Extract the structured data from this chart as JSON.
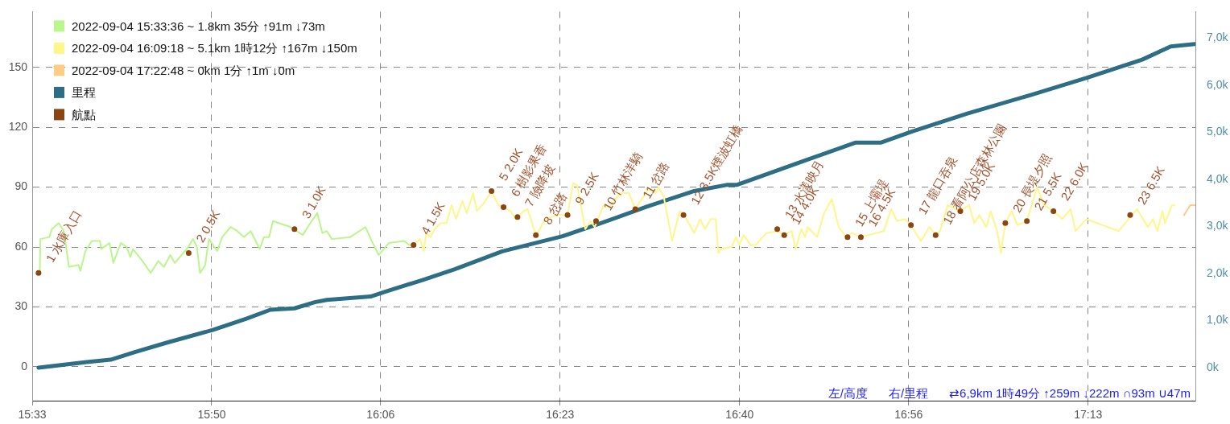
{
  "chart_data": {
    "type": "line",
    "xlim": [
      15.55,
      17.386
    ],
    "xticks": [
      {
        "value": 15.55,
        "label": "15:33"
      },
      {
        "value": 15.8333,
        "label": "15:50"
      },
      {
        "value": 16.1,
        "label": "16:06"
      },
      {
        "value": 16.3833,
        "label": "16:23"
      },
      {
        "value": 16.6667,
        "label": "16:40"
      },
      {
        "value": 16.9333,
        "label": "16:56"
      },
      {
        "value": 17.2167,
        "label": "17:13"
      }
    ],
    "ylim": [
      -17,
      178
    ],
    "yticks": [
      0,
      30,
      60,
      90,
      120,
      150
    ],
    "y2lim": [
      -0.7,
      7.56
    ],
    "y2ticks": [
      {
        "value": 0,
        "label": "0k"
      },
      {
        "value": 1,
        "label": "1,0k"
      },
      {
        "value": 2,
        "label": "2,0k"
      },
      {
        "value": 3,
        "label": "3,0k"
      },
      {
        "value": 4,
        "label": "4,0k"
      },
      {
        "value": 5,
        "label": "5,0k"
      },
      {
        "value": 6,
        "label": "6,0k"
      },
      {
        "value": 7,
        "label": "7,0k"
      }
    ],
    "grid": true,
    "legend": "top left",
    "series": [
      {
        "name": "2022-09-04 15:33:36 ~ 1.8km 35分 ↑91m ↓73m",
        "color": "#b9f68b",
        "x": [
          15.562,
          15.563,
          15.577,
          15.581,
          15.592,
          15.6,
          15.608,
          15.623,
          15.626,
          15.634,
          15.644,
          15.657,
          15.659,
          15.672,
          15.678,
          15.69,
          15.699,
          15.705,
          15.709,
          15.724,
          15.737,
          15.749,
          15.758,
          15.768,
          15.775,
          15.794,
          15.804,
          15.81,
          15.815,
          15.823,
          15.829,
          15.842,
          15.85,
          15.863,
          15.874,
          15.884,
          15.895,
          15.909,
          15.916,
          15.924,
          15.93,
          15.958,
          15.977,
          15.989,
          16.0,
          16.008,
          16.015,
          16.023,
          16.052,
          16.076,
          16.086,
          16.097,
          16.113,
          16.137,
          16.145,
          16.151
        ],
        "values": [
          47,
          64,
          65,
          69,
          72,
          68,
          50,
          51,
          48,
          58,
          63,
          63,
          59,
          62,
          52,
          62,
          60,
          55,
          59,
          53,
          47,
          53,
          50,
          56,
          52,
          59,
          64,
          60,
          47,
          51,
          64,
          58,
          65,
          70,
          68,
          65,
          68,
          59,
          65,
          65,
          73,
          70,
          66,
          72,
          77,
          67,
          68,
          64,
          65,
          70,
          63,
          56,
          62,
          63,
          61,
          61
        ]
      },
      {
        "name": "2022-09-04 16:09:18 ~ 5.1km 1時12分 ↑167m ↓150m",
        "color": "#fff68a",
        "x": [
          16.151,
          16.162,
          16.168,
          16.172,
          16.179,
          16.185,
          16.195,
          16.204,
          16.212,
          16.219,
          16.229,
          16.236,
          16.246,
          16.252,
          16.263,
          16.275,
          16.286,
          16.294,
          16.305,
          16.313,
          16.326,
          16.332,
          16.343,
          16.346,
          16.351,
          16.36,
          16.377,
          16.395,
          16.404,
          16.41,
          16.423,
          16.431,
          16.438,
          16.452,
          16.461,
          16.478,
          16.492,
          16.502,
          16.522,
          16.534,
          16.539,
          16.547,
          16.56,
          16.572,
          16.579,
          16.595,
          16.604,
          16.612,
          16.621,
          16.629,
          16.633,
          16.637,
          16.654,
          16.661,
          16.666,
          16.673,
          16.684,
          16.692,
          16.7,
          16.709,
          16.726,
          16.737,
          16.749,
          16.755,
          16.764,
          16.77,
          16.774,
          16.789,
          16.8,
          16.812,
          16.823,
          16.835,
          16.844,
          16.858,
          16.894,
          16.906,
          16.915,
          16.928,
          16.936,
          16.953,
          16.966,
          16.976,
          16.983,
          16.995,
          17.014,
          17.029,
          17.037,
          17.045,
          17.056,
          17.063,
          17.073,
          17.079,
          17.086,
          17.096,
          17.105,
          17.12,
          17.136,
          17.147,
          17.162,
          17.176,
          17.189,
          17.197,
          17.214,
          17.248,
          17.265,
          17.283,
          17.294,
          17.311,
          17.319,
          17.326,
          17.334,
          17.338,
          17.349,
          17.353
        ],
        "values": [
          61,
          64,
          58,
          67,
          65,
          69,
          72,
          72,
          81,
          74,
          83,
          77,
          87,
          78,
          82,
          88,
          81,
          80,
          78,
          74,
          78,
          79,
          68,
          66,
          69,
          74,
          76,
          76,
          92,
          91,
          69,
          73,
          70,
          81,
          80,
          87,
          87,
          79,
          89,
          87,
          90,
          85,
          63,
          78,
          76,
          67,
          74,
          69,
          74,
          74,
          57,
          59,
          60,
          65,
          61,
          66,
          61,
          61,
          64,
          67,
          68,
          66,
          68,
          59,
          69,
          65,
          70,
          65,
          77,
          84,
          70,
          65,
          67,
          65,
          68,
          79,
          73,
          74,
          71,
          63,
          70,
          66,
          68,
          81,
          78,
          81,
          72,
          76,
          70,
          78,
          68,
          57,
          72,
          78,
          71,
          73,
          90,
          81,
          78,
          74,
          79,
          68,
          74,
          70,
          68,
          75,
          79,
          70,
          74,
          68,
          78,
          72,
          81,
          81
        ]
      },
      {
        "name": "2022-09-04 17:22:48 ~ 0km 1分 ↑1m ↓0m",
        "color": "#ffcc88",
        "x": [
          17.368,
          17.378,
          17.385
        ],
        "values": [
          76,
          81,
          81
        ]
      },
      {
        "name": "里程",
        "color": "#2e6e84",
        "axis": "y2",
        "x": [
          15.56,
          15.636,
          15.674,
          15.712,
          15.762,
          15.835,
          15.888,
          15.926,
          15.964,
          15.996,
          16.015,
          16.084,
          16.111,
          16.166,
          16.217,
          16.292,
          16.387,
          16.444,
          16.52,
          16.595,
          16.646,
          16.662,
          16.772,
          16.85,
          16.89,
          16.938,
          17.025,
          17.126,
          17.214,
          17.302,
          17.347,
          17.385
        ],
        "values": [
          0,
          0.12,
          0.17,
          0.33,
          0.53,
          0.8,
          1.04,
          1.23,
          1.26,
          1.39,
          1.44,
          1.51,
          1.63,
          1.86,
          2.09,
          2.47,
          2.79,
          3.05,
          3.42,
          3.75,
          3.88,
          3.88,
          4.41,
          4.78,
          4.78,
          5.01,
          5.39,
          5.79,
          6.15,
          6.54,
          6.82,
          6.87
        ]
      },
      {
        "type": "scatter",
        "name": "航點",
        "color": "#8b4513",
        "marker": "circle",
        "x": [
          15.56,
          15.797,
          15.964,
          16.152,
          16.275,
          16.294,
          16.316,
          16.345,
          16.395,
          16.44,
          16.502,
          16.578,
          16.726,
          16.737,
          16.837,
          16.858,
          16.937,
          16.976,
          17.015,
          17.086,
          17.12,
          17.162,
          17.283
        ],
        "values": [
          47,
          57,
          69,
          61,
          88,
          80,
          75,
          66,
          76,
          73,
          79,
          76,
          69,
          66,
          65,
          65,
          71,
          66,
          78,
          72,
          73,
          78,
          76
        ]
      }
    ],
    "annotations": [
      {
        "text": "1 水庫入口",
        "x": 15.56,
        "y": 47
      },
      {
        "text": "2 0.5K",
        "x": 15.797,
        "y": 57
      },
      {
        "text": "3 1.0K",
        "x": 15.964,
        "y": 69
      },
      {
        "text": "4 1.5K",
        "x": 16.152,
        "y": 61
      },
      {
        "text": "5 2.0K",
        "x": 16.275,
        "y": 88
      },
      {
        "text": "6 樹影果香",
        "x": 16.294,
        "y": 80
      },
      {
        "text": "7 險降坡",
        "x": 16.316,
        "y": 75
      },
      {
        "text": "8 岔路",
        "x": 16.345,
        "y": 66
      },
      {
        "text": "9 2.5K",
        "x": 16.395,
        "y": 76
      },
      {
        "text": "10 竹林洋騎",
        "x": 16.44,
        "y": 73
      },
      {
        "text": "11 岔路",
        "x": 16.502,
        "y": 79
      },
      {
        "text": "12 3.5K煙波虹橋",
        "x": 16.578,
        "y": 76
      },
      {
        "text": "13 水漾映月",
        "x": 16.726,
        "y": 69
      },
      {
        "text": "14 4.0K",
        "x": 16.737,
        "y": 66
      },
      {
        "text": "15 上壩堤",
        "x": 16.837,
        "y": 65
      },
      {
        "text": "16 4.5K",
        "x": 16.858,
        "y": 65
      },
      {
        "text": "17 龍口吞泉",
        "x": 16.937,
        "y": 71
      },
      {
        "text": "18 看阿公店森林公園",
        "x": 16.976,
        "y": 66
      },
      {
        "text": "19 5.0K",
        "x": 17.015,
        "y": 78
      },
      {
        "text": "20 長堤夕照",
        "x": 17.086,
        "y": 72
      },
      {
        "text": "21 5.5K",
        "x": 17.12,
        "y": 73
      },
      {
        "text": "22 6.0K",
        "x": 17.162,
        "y": 78
      },
      {
        "text": "23 6.5K",
        "x": 17.283,
        "y": 76
      },
      "左/高度",
      "右/里程",
      "⇄6,9km 1時49分 ↑259m ↓222m ∩93m ∪47m"
    ]
  }
}
